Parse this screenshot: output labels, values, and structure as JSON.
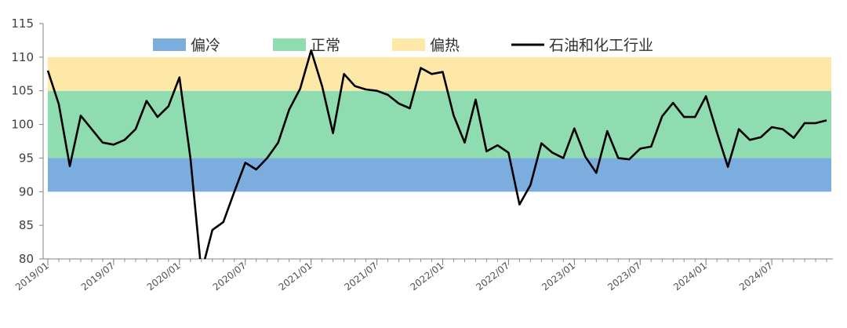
{
  "chart_data": {
    "type": "line",
    "title": "",
    "xlabel": "",
    "ylabel": "",
    "ylim": [
      80,
      115
    ],
    "yticks": [
      80,
      85,
      90,
      95,
      100,
      105,
      110,
      115
    ],
    "bands": [
      {
        "name": "偏冷",
        "from": 90,
        "to": 95,
        "color": "#7badde"
      },
      {
        "name": "正常",
        "from": 95,
        "to": 105,
        "color": "#8fdcb0"
      },
      {
        "name": "偏热",
        "from": 105,
        "to": 110,
        "color": "#fde8a8"
      }
    ],
    "series": [
      {
        "name": "石油和化工行业",
        "color": "#000000",
        "values": [
          108.0,
          103.0,
          93.8,
          101.3,
          99.3,
          97.3,
          97.0,
          97.7,
          99.3,
          103.5,
          101.1,
          102.7,
          107.0,
          95.0,
          78.0,
          84.3,
          85.5,
          90.0,
          94.3,
          93.3,
          95.0,
          97.3,
          102.2,
          105.3,
          111.0,
          105.7,
          98.7,
          107.5,
          105.7,
          105.2,
          105.0,
          104.4,
          103.1,
          102.4,
          108.4,
          107.5,
          107.8,
          101.3,
          97.3,
          103.7,
          96.0,
          96.9,
          95.8,
          88.1,
          91.0,
          97.2,
          95.8,
          95.0,
          99.4,
          95.2,
          92.8,
          99.0,
          95.0,
          94.8,
          96.4,
          96.7,
          101.2,
          103.2,
          101.1,
          101.1,
          104.2,
          98.8,
          93.7,
          99.3,
          97.7,
          98.1,
          99.6,
          99.3,
          98.0,
          100.2,
          100.2,
          100.6
        ]
      }
    ],
    "x_tick_labels": [
      "2019/01",
      "2019/07",
      "2020/01",
      "2020/07",
      "2021/01",
      "2021/07",
      "2022/01",
      "2022/07",
      "2023/01",
      "2023/07",
      "2024/01",
      "2024/07"
    ],
    "legend": {
      "position": "top",
      "entries": [
        {
          "label": "偏冷",
          "kind": "swatch",
          "color": "#7badde"
        },
        {
          "label": "正常",
          "kind": "swatch",
          "color": "#8fdcb0"
        },
        {
          "label": "偏热",
          "kind": "swatch",
          "color": "#fde8a8"
        },
        {
          "label": "石油和化工行业",
          "kind": "line",
          "color": "#000000"
        }
      ]
    }
  }
}
